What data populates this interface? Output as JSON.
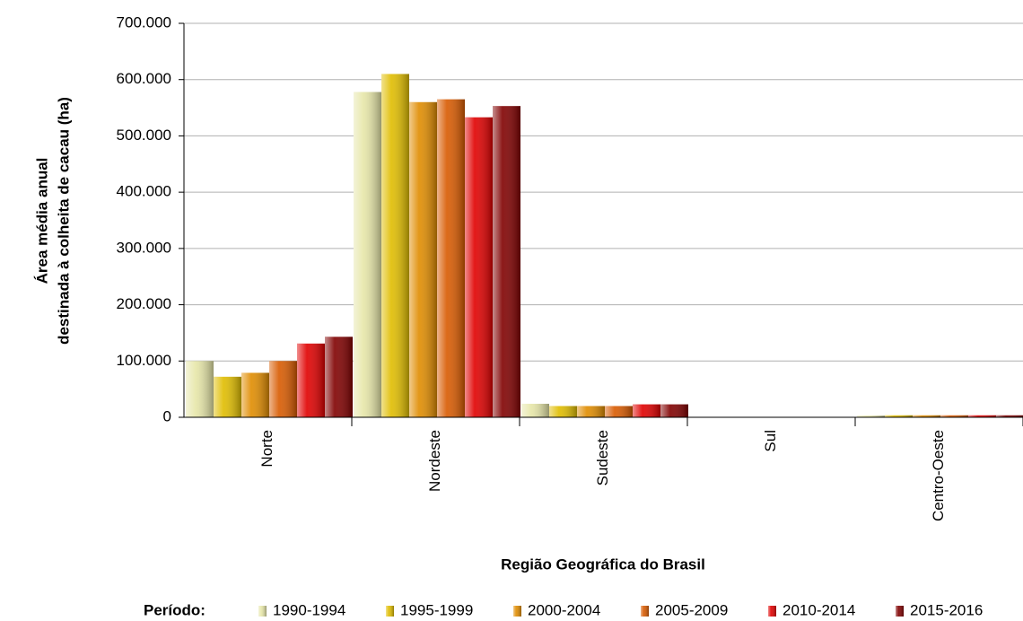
{
  "chart_data": {
    "type": "bar",
    "ylabel": [
      "Área média anual",
      "destinada à colheita de cacau (ha)"
    ],
    "xlabel": "Região Geográfica do Brasil",
    "legend_title": "Período:",
    "categories": [
      "Norte",
      "Nordeste",
      "Sudeste",
      "Sul",
      "Centro-Oeste"
    ],
    "series": [
      {
        "name": "1990-1994",
        "color": "#e6e6a8",
        "values": [
          100000,
          578000,
          24000,
          0,
          3000
        ]
      },
      {
        "name": "1995-1999",
        "color": "#e0bd00",
        "values": [
          72000,
          610000,
          20000,
          0,
          3500
        ]
      },
      {
        "name": "2000-2004",
        "color": "#e08c00",
        "values": [
          79000,
          560000,
          20000,
          0,
          3500
        ]
      },
      {
        "name": "2005-2009",
        "color": "#d85a00",
        "values": [
          100000,
          565000,
          20000,
          0,
          3500
        ]
      },
      {
        "name": "2010-2014",
        "color": "#e00000",
        "values": [
          131000,
          533000,
          23000,
          0,
          3500
        ]
      },
      {
        "name": "2015-2016",
        "color": "#800000",
        "values": [
          143000,
          553000,
          23000,
          0,
          3500
        ]
      }
    ],
    "ylim": [
      0,
      700000
    ],
    "yticks": [
      0,
      {
        "value": 100000,
        "label": "100.000"
      },
      {
        "value": 200000,
        "label": "200.000"
      },
      {
        "value": 300000,
        "label": "300.000"
      },
      {
        "value": 400000,
        "label": "400.000"
      },
      {
        "value": 500000,
        "label": "500.000"
      },
      {
        "value": 600000,
        "label": "600.000"
      },
      {
        "value": 700000,
        "label": "700.000"
      }
    ],
    "grid": true
  }
}
